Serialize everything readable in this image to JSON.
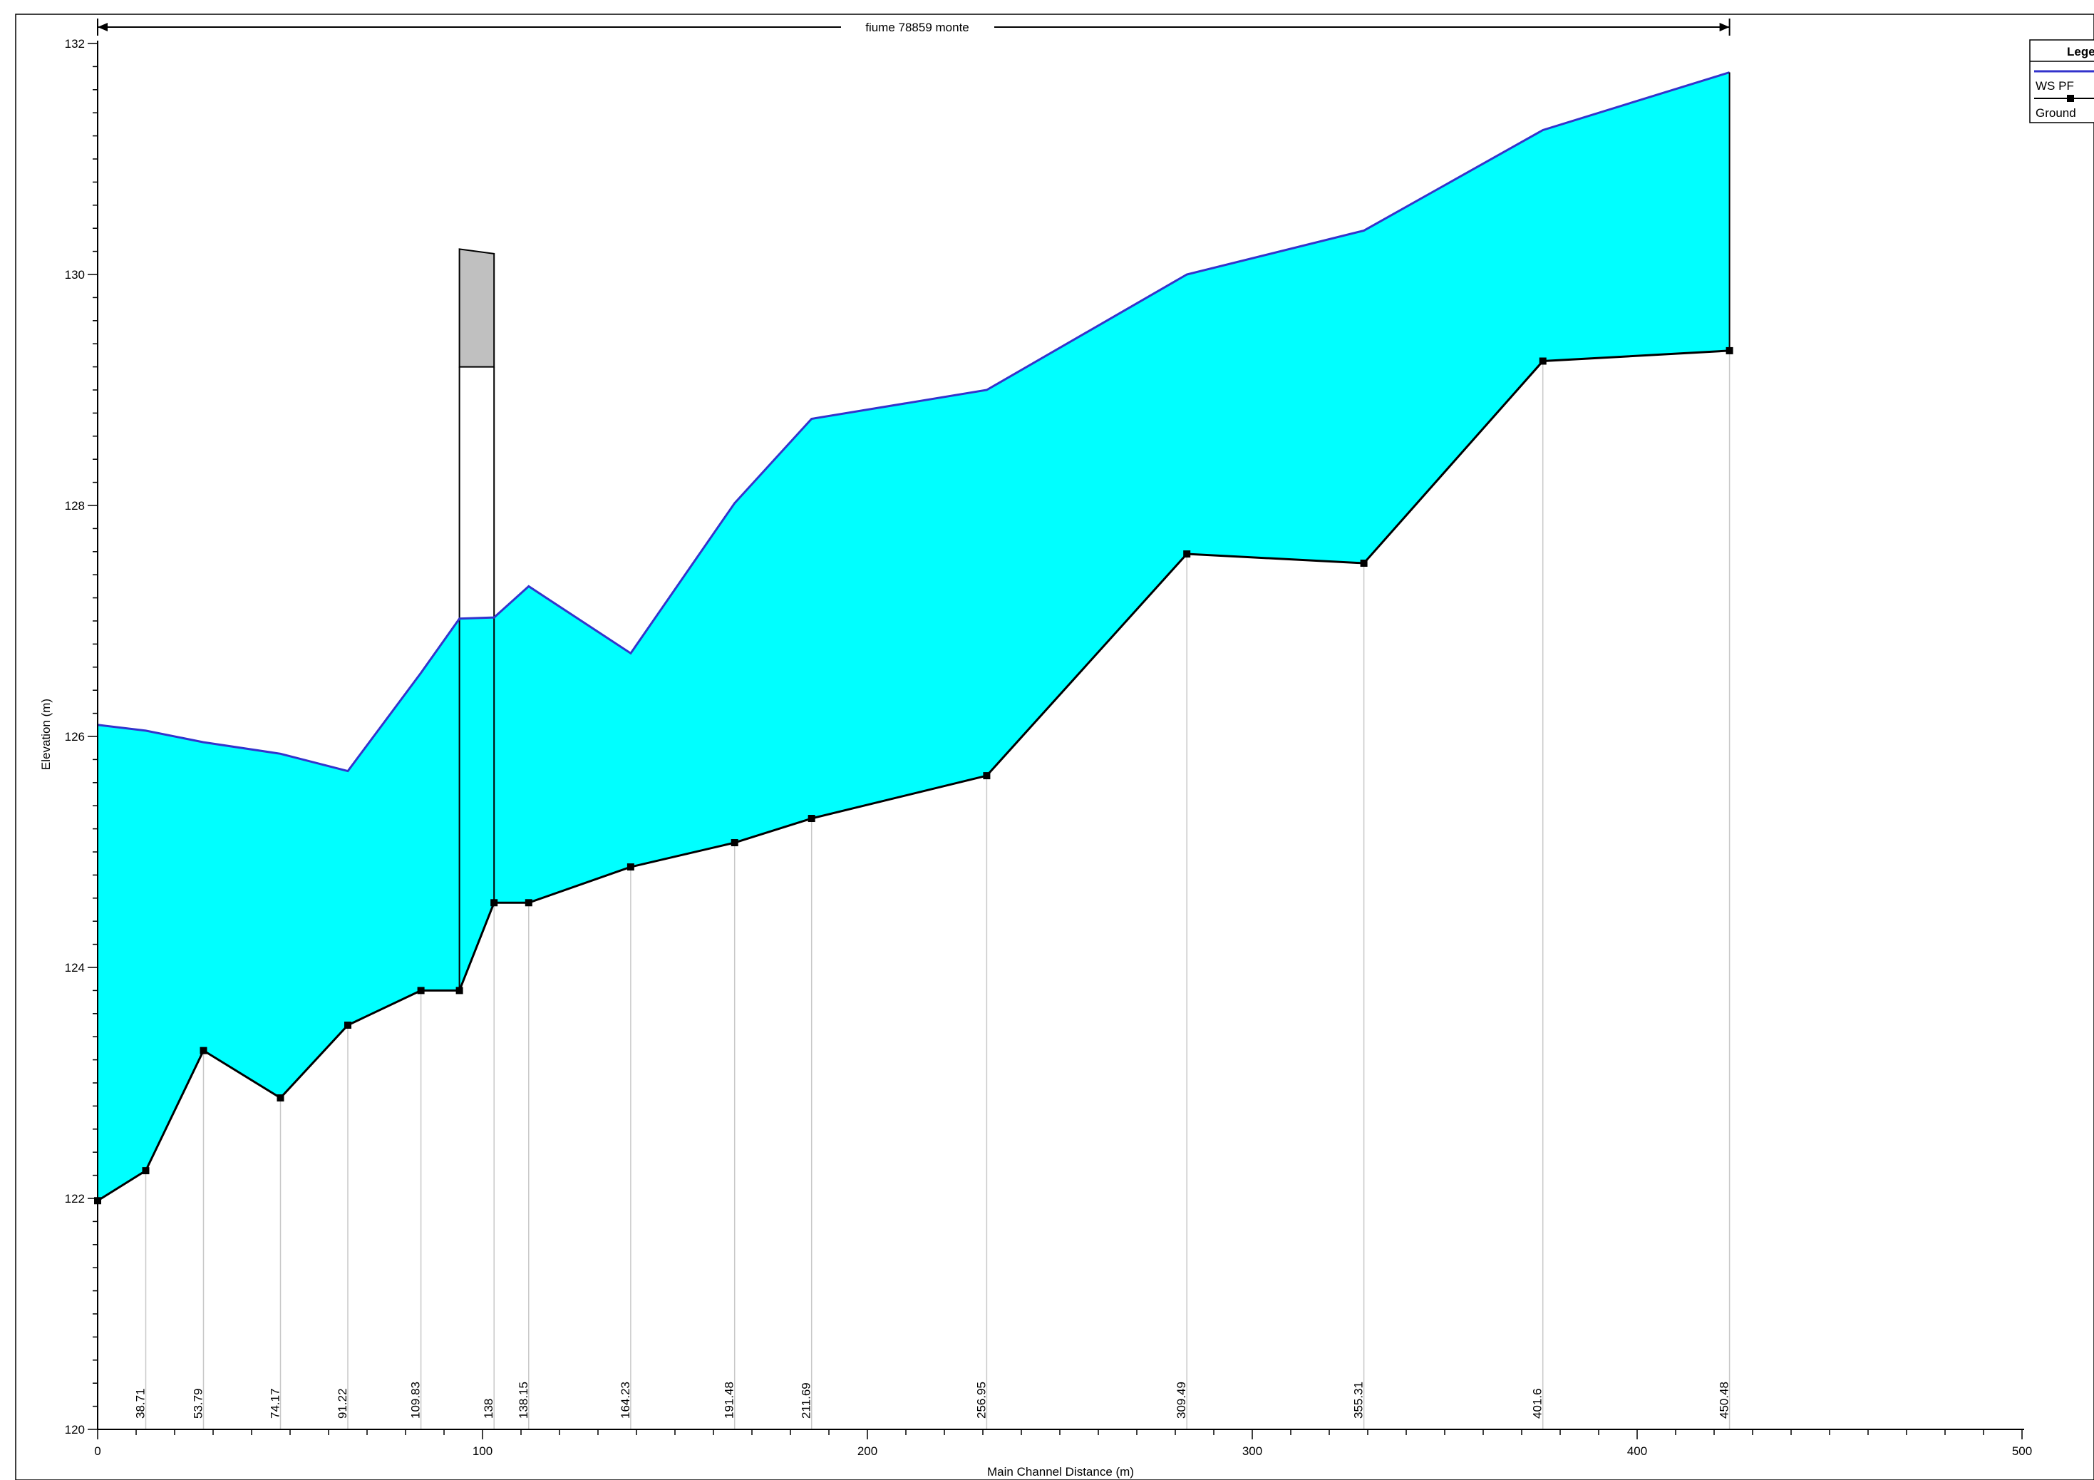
{
  "chart_data": {
    "type": "line",
    "title": "",
    "xlabel": "Main Channel Distance (m)",
    "ylabel": "Elevation (m)",
    "xlim": [
      0,
      500
    ],
    "ylim": [
      120,
      132
    ],
    "x_ticks": [
      0,
      100,
      200,
      300,
      400,
      500
    ],
    "y_ticks": [
      120,
      122,
      124,
      126,
      128,
      130,
      132
    ],
    "grid": false,
    "legend": {
      "title": "Legend",
      "position": "top-right",
      "entries": [
        "WS PF",
        "Ground"
      ]
    },
    "reach_label": "fiume 78859 monte",
    "reach_extent": [
      0,
      424
    ],
    "fill_color": "#00FFFF",
    "ws_color": "#3333CC",
    "ground_color": "#000000",
    "structure_color": "#C0C0C0",
    "series": [
      {
        "name": "WS PF",
        "x": [
          0,
          12.5,
          27.5,
          47.5,
          65,
          84,
          94,
          103,
          112,
          138.5,
          165.5,
          185.5,
          231,
          283,
          329,
          375.5,
          424
        ],
        "values": [
          126.1,
          126.05,
          125.95,
          125.85,
          125.7,
          126.55,
          127.02,
          127.03,
          127.3,
          126.72,
          128.02,
          128.75,
          129.0,
          130.0,
          130.38,
          131.25,
          131.75
        ]
      },
      {
        "name": "Ground",
        "x": [
          0,
          12.5,
          27.5,
          47.5,
          65,
          84,
          94,
          103,
          112,
          138.5,
          165.5,
          185.5,
          231,
          283,
          329,
          375.5,
          424
        ],
        "values": [
          121.98,
          122.24,
          123.28,
          122.87,
          123.5,
          123.8,
          123.8,
          124.56,
          124.56,
          124.87,
          125.08,
          125.29,
          125.66,
          127.58,
          127.5,
          129.25,
          129.34
        ]
      }
    ],
    "stations": [
      {
        "x": 12.5,
        "label": "38.71"
      },
      {
        "x": 27.5,
        "label": "53.79"
      },
      {
        "x": 47.5,
        "label": "74.17"
      },
      {
        "x": 65,
        "label": "91.22"
      },
      {
        "x": 84,
        "label": "109.83"
      },
      {
        "x": 103,
        "label": "138"
      },
      {
        "x": 112,
        "label": "138.15"
      },
      {
        "x": 138.5,
        "label": "164.23"
      },
      {
        "x": 165.5,
        "label": "191.48"
      },
      {
        "x": 185.5,
        "label": "211.69"
      },
      {
        "x": 231,
        "label": "256.95"
      },
      {
        "x": 283,
        "label": "309.49"
      },
      {
        "x": 329,
        "label": "355.31"
      },
      {
        "x": 375.5,
        "label": "401.6"
      },
      {
        "x": 424,
        "label": "450.48"
      }
    ],
    "structure": {
      "x_start": 94,
      "x_end": 103,
      "deck_bottom": 129.2,
      "deck_top_start": 130.22,
      "deck_top_end": 130.18
    }
  }
}
